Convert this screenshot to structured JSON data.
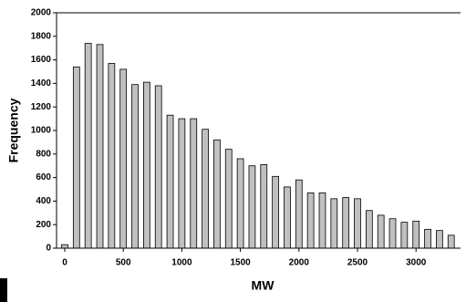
{
  "chart_data": {
    "type": "histogram",
    "x_label": "MW",
    "y_label": "Frequency",
    "bins": [
      -50,
      50,
      150,
      250,
      350,
      450,
      550,
      650,
      750,
      850,
      950,
      1050,
      1150,
      1250,
      1350,
      1450,
      1550,
      1650,
      1750,
      1850,
      1950,
      2050,
      2150,
      2250,
      2350,
      2450,
      2550,
      2650,
      2750,
      2850,
      2950,
      3050,
      3150,
      3250,
      3350
    ],
    "values": [
      30,
      1540,
      1740,
      1730,
      1570,
      1520,
      1390,
      1410,
      1380,
      1130,
      1100,
      1100,
      1010,
      920,
      840,
      760,
      700,
      710,
      610,
      520,
      580,
      470,
      470,
      420,
      430,
      420,
      320,
      280,
      250,
      220,
      230,
      160,
      150,
      110
    ],
    "color": "#c0c0c0",
    "xlim": [
      -70,
      3380
    ],
    "ylim": [
      0,
      2000
    ],
    "xticks": [
      0,
      500,
      1000,
      1500,
      2000,
      2500,
      3000
    ],
    "yticks": [
      0,
      200,
      400,
      600,
      800,
      1000,
      1200,
      1400,
      1600,
      1800,
      2000
    ]
  }
}
